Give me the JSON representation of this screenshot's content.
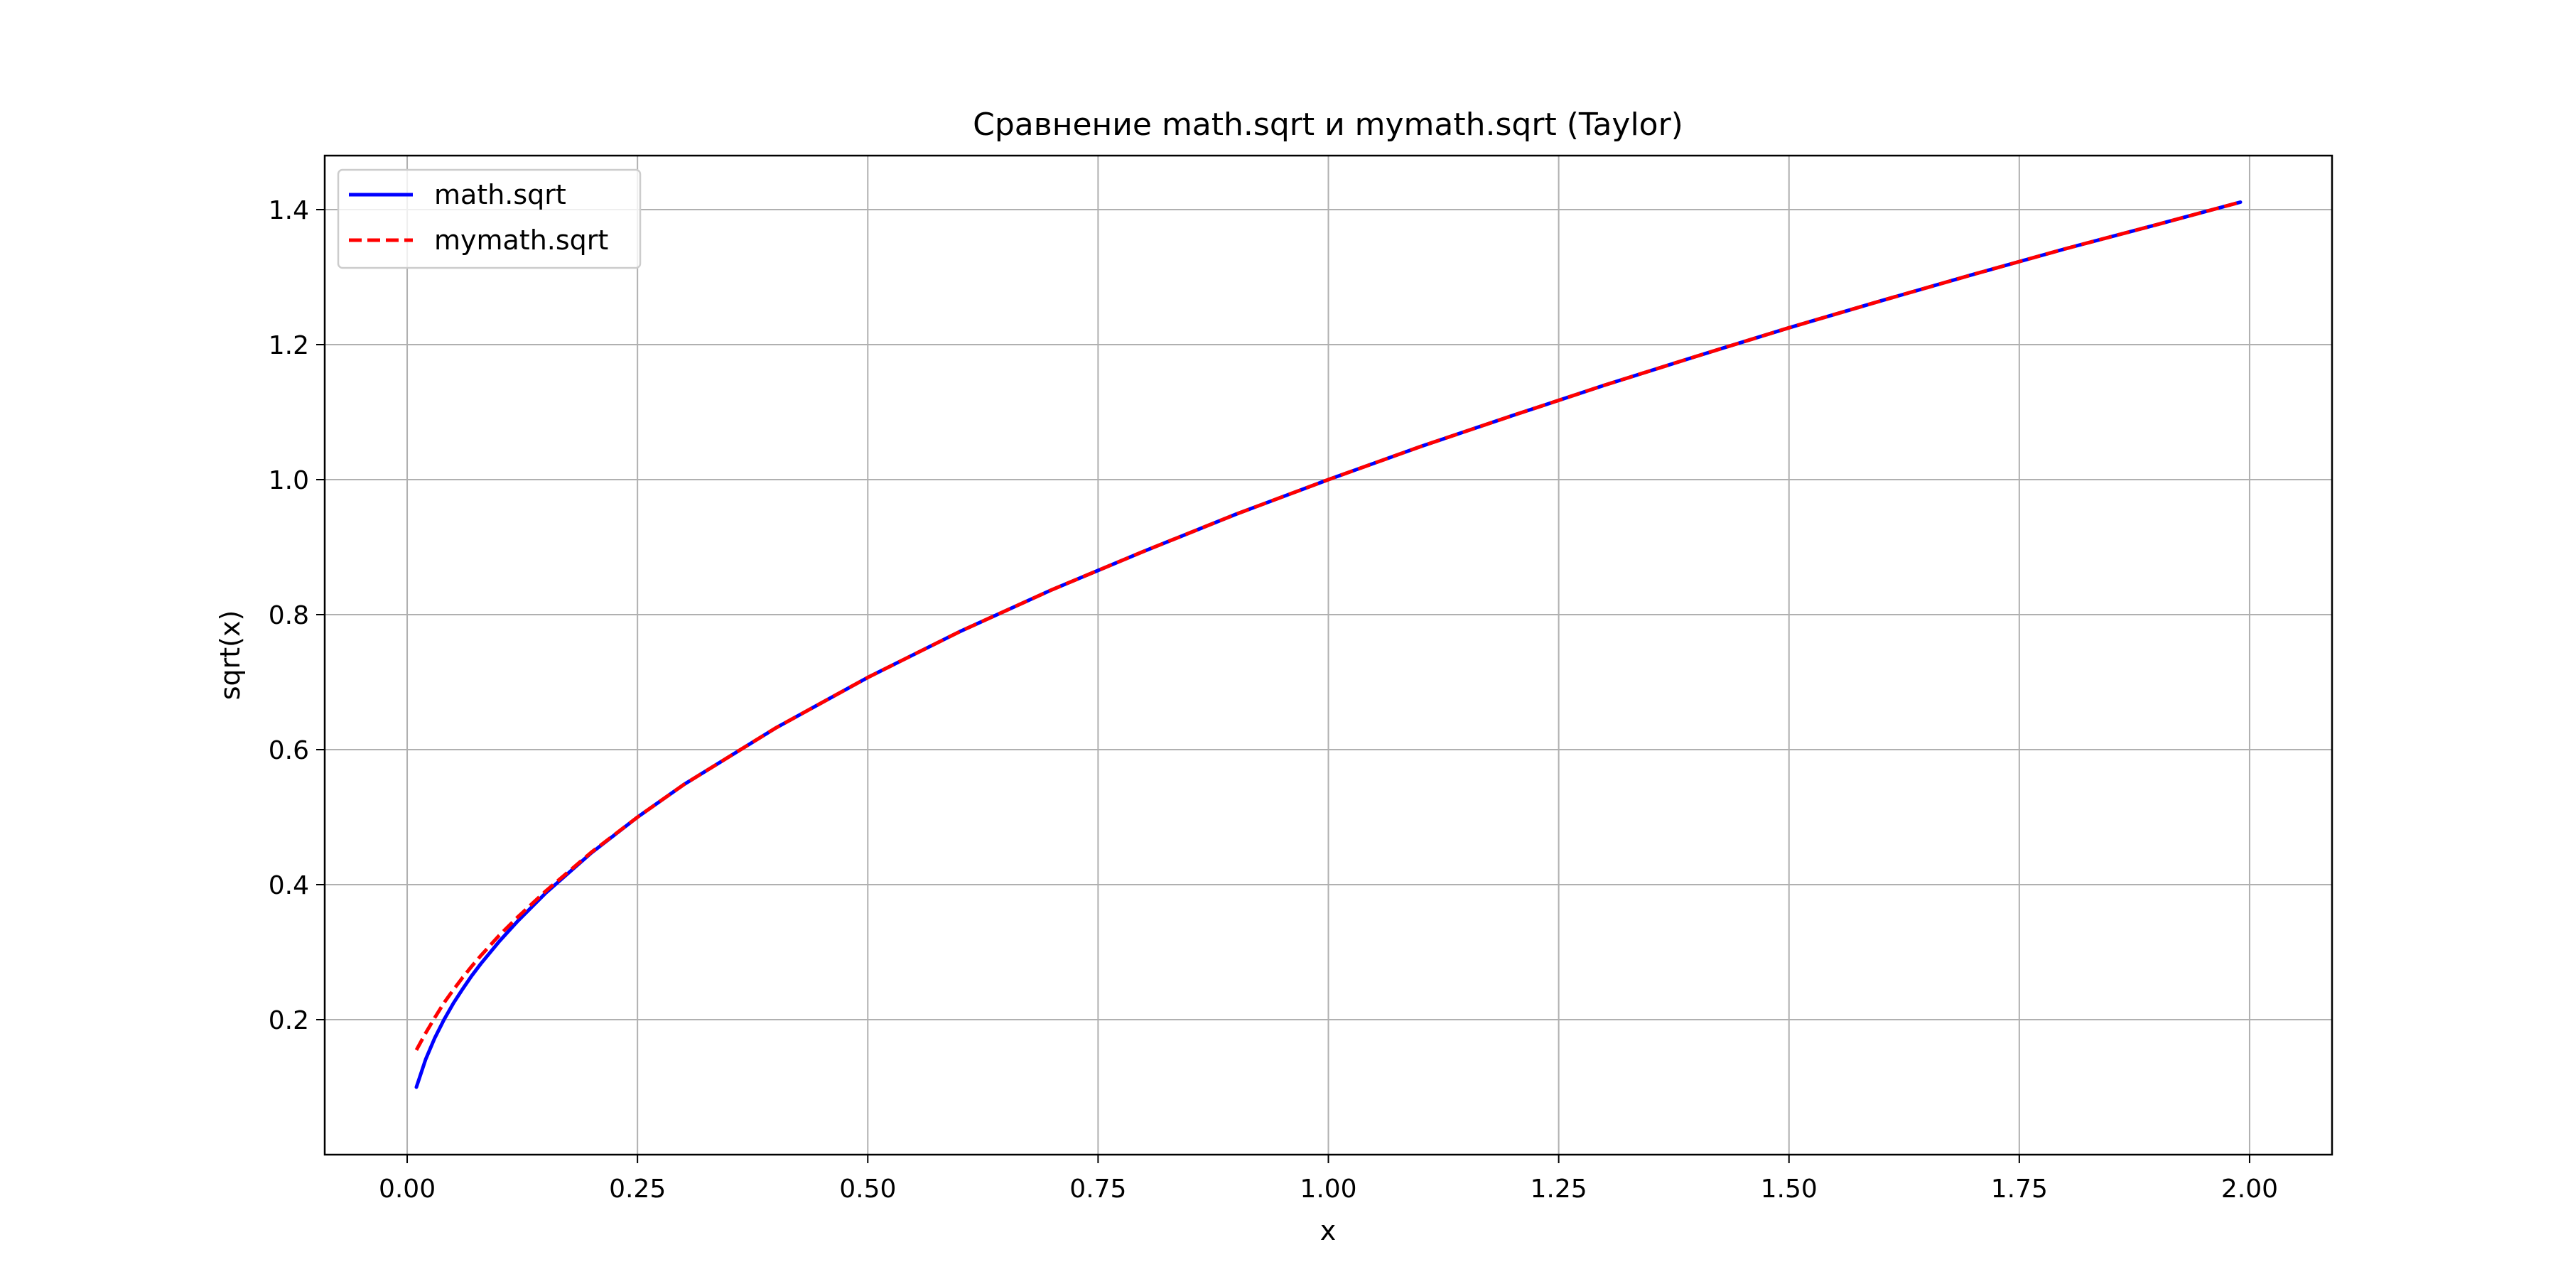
{
  "chart_data": {
    "type": "line",
    "title": "Сравнение math.sqrt и mymath.sqrt (Taylor)",
    "xlabel": "x",
    "ylabel": "sqrt(x)",
    "xlim": [
      -0.0895,
      2.0895
    ],
    "ylim": [
      0.0,
      1.48
    ],
    "xticks": [
      "0.00",
      "0.25",
      "0.50",
      "0.75",
      "1.00",
      "1.25",
      "1.50",
      "1.75",
      "2.00"
    ],
    "yticks": [
      "0.2",
      "0.4",
      "0.6",
      "0.8",
      "1.0",
      "1.2",
      "1.4"
    ],
    "grid": true,
    "legend_position": "upper-left",
    "x": [
      0.01,
      0.02,
      0.03,
      0.04,
      0.05,
      0.06,
      0.07,
      0.08,
      0.1,
      0.12,
      0.15,
      0.2,
      0.25,
      0.3,
      0.4,
      0.5,
      0.6,
      0.7,
      0.8,
      0.9,
      1.0,
      1.1,
      1.2,
      1.3,
      1.4,
      1.5,
      1.6,
      1.7,
      1.8,
      1.9,
      1.99
    ],
    "series": [
      {
        "name": "math.sqrt",
        "color": "#0000ff",
        "style": "solid",
        "values": [
          0.1,
          0.141,
          0.173,
          0.2,
          0.224,
          0.245,
          0.265,
          0.283,
          0.316,
          0.346,
          0.387,
          0.447,
          0.5,
          0.548,
          0.632,
          0.707,
          0.775,
          0.837,
          0.894,
          0.949,
          1.0,
          1.049,
          1.095,
          1.14,
          1.183,
          1.225,
          1.265,
          1.304,
          1.342,
          1.378,
          1.411
        ]
      },
      {
        "name": "mymath.sqrt",
        "color": "#ff0000",
        "style": "dashed",
        "values": [
          0.155,
          0.18,
          0.203,
          0.225,
          0.244,
          0.262,
          0.279,
          0.295,
          0.325,
          0.352,
          0.39,
          0.448,
          0.5,
          0.548,
          0.632,
          0.707,
          0.775,
          0.837,
          0.894,
          0.949,
          1.0,
          1.049,
          1.095,
          1.14,
          1.183,
          1.225,
          1.265,
          1.304,
          1.342,
          1.378,
          1.411
        ]
      }
    ]
  }
}
